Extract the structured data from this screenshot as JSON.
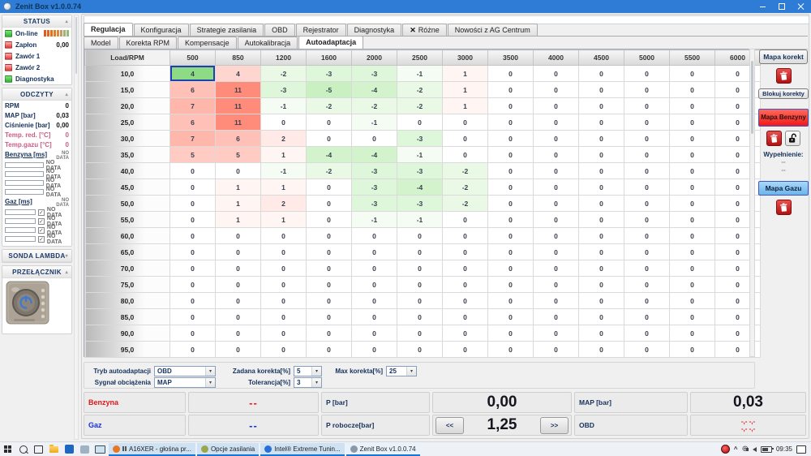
{
  "window": {
    "title": "Zenit Box v1.0.0.74"
  },
  "sidebar": {
    "status": {
      "title": "STATUS",
      "items": [
        {
          "label": "On-line",
          "led": "green",
          "type": "meter",
          "value": ""
        },
        {
          "label": "Zapłon",
          "led": "red",
          "type": "value",
          "value": "0,00"
        },
        {
          "label": "Zawór 1",
          "led": "red",
          "type": "value",
          "value": ""
        },
        {
          "label": "Zawór 2",
          "led": "red",
          "type": "value",
          "value": ""
        },
        {
          "label": "Diagnostyka",
          "led": "green",
          "type": "value",
          "value": ""
        }
      ],
      "meter_colors": [
        "#e05a20",
        "#e2641f",
        "#e4701e",
        "#e67c1d",
        "#d88a40",
        "#c39a66",
        "#a8ad7c",
        "#8fbf74"
      ]
    },
    "odczyty": {
      "title": "ODCZYTY",
      "readings": [
        {
          "label": "RPM",
          "value": "0",
          "tone": "dark"
        },
        {
          "label": "MAP [bar]",
          "value": "0,03",
          "tone": "dark"
        },
        {
          "label": "Ciśnienie [bar]",
          "value": "0,00",
          "tone": "dark"
        },
        {
          "label": "Temp. red. [°C]",
          "value": "0",
          "tone": "pink"
        },
        {
          "label": "Temp.gazu [°C]",
          "value": "0",
          "tone": "pink"
        }
      ],
      "benzyna": {
        "label": "Benzyna [ms]",
        "no_data": "NO DATA",
        "bars": [
          "NO DATA",
          "NO DATA",
          "NO DATA",
          "NO DATA"
        ]
      },
      "gaz": {
        "label": "Gaz [ms]",
        "no_data": "NO DATA",
        "bars": [
          "NO DATA",
          "NO DATA",
          "NO DATA",
          "NO DATA"
        ],
        "check": "✓"
      }
    },
    "sonda": {
      "title": "SONDA LAMBDA"
    },
    "przelacznik": {
      "title": "PRZEŁĄCZNIK"
    }
  },
  "tabs": {
    "main": [
      {
        "label": "Regulacja",
        "active": true
      },
      {
        "label": "Konfiguracja"
      },
      {
        "label": "Strategie zasilania"
      },
      {
        "label": "OBD"
      },
      {
        "label": "Rejestrator"
      },
      {
        "label": "Diagnostyka"
      },
      {
        "label": "Różne",
        "icon": "tools-icon",
        "icon_glyph": "✕"
      },
      {
        "label": "Nowości z AG Centrum"
      }
    ],
    "sub": [
      {
        "label": "Model"
      },
      {
        "label": "Korekta RPM"
      },
      {
        "label": "Kompensacje"
      },
      {
        "label": "Autokalibracja"
      },
      {
        "label": "Autoadaptacja",
        "active": true
      }
    ]
  },
  "map_table": {
    "corner": "Load/RPM",
    "columns": [
      "500",
      "850",
      "1200",
      "1600",
      "2000",
      "2500",
      "3000",
      "3500",
      "4000",
      "4500",
      "5000",
      "5500",
      "6000"
    ],
    "rows": [
      "10,0",
      "15,0",
      "20,0",
      "25,0",
      "30,0",
      "35,0",
      "40,0",
      "45,0",
      "50,0",
      "55,0",
      "60,0",
      "65,0",
      "70,0",
      "75,0",
      "80,0",
      "85,0",
      "90,0",
      "95,0"
    ],
    "values": [
      [
        4,
        4,
        -2,
        -3,
        -3,
        -1,
        1,
        0,
        0,
        0,
        0,
        0,
        0
      ],
      [
        6,
        11,
        -3,
        -5,
        -4,
        -2,
        1,
        0,
        0,
        0,
        0,
        0,
        0
      ],
      [
        7,
        11,
        -1,
        -2,
        -2,
        -2,
        1,
        0,
        0,
        0,
        0,
        0,
        0
      ],
      [
        6,
        11,
        0,
        0,
        -1,
        0,
        0,
        0,
        0,
        0,
        0,
        0,
        0
      ],
      [
        7,
        6,
        2,
        0,
        0,
        -3,
        0,
        0,
        0,
        0,
        0,
        0,
        0
      ],
      [
        5,
        5,
        1,
        -4,
        -4,
        -1,
        0,
        0,
        0,
        0,
        0,
        0,
        0
      ],
      [
        0,
        0,
        -1,
        -2,
        -3,
        -3,
        -2,
        0,
        0,
        0,
        0,
        0,
        0
      ],
      [
        0,
        1,
        1,
        0,
        -3,
        -4,
        -2,
        0,
        0,
        0,
        0,
        0,
        0
      ],
      [
        0,
        1,
        2,
        0,
        -3,
        -3,
        -2,
        0,
        0,
        0,
        0,
        0,
        0
      ],
      [
        0,
        1,
        1,
        0,
        -1,
        -1,
        0,
        0,
        0,
        0,
        0,
        0,
        0
      ],
      [
        0,
        0,
        0,
        0,
        0,
        0,
        0,
        0,
        0,
        0,
        0,
        0,
        0
      ],
      [
        0,
        0,
        0,
        0,
        0,
        0,
        0,
        0,
        0,
        0,
        0,
        0,
        0
      ],
      [
        0,
        0,
        0,
        0,
        0,
        0,
        0,
        0,
        0,
        0,
        0,
        0,
        0
      ],
      [
        0,
        0,
        0,
        0,
        0,
        0,
        0,
        0,
        0,
        0,
        0,
        0,
        0
      ],
      [
        0,
        0,
        0,
        0,
        0,
        0,
        0,
        0,
        0,
        0,
        0,
        0,
        0
      ],
      [
        0,
        0,
        0,
        0,
        0,
        0,
        0,
        0,
        0,
        0,
        0,
        0,
        0
      ],
      [
        0,
        0,
        0,
        0,
        0,
        0,
        0,
        0,
        0,
        0,
        0,
        0,
        0
      ],
      [
        0,
        0,
        0,
        0,
        0,
        0,
        0,
        0,
        0,
        0,
        0,
        0,
        0
      ]
    ],
    "selected": {
      "row": 0,
      "col": 0
    }
  },
  "controls": {
    "tryb_label": "Tryb autoadaptacji",
    "tryb_value": "OBD",
    "sygnal_label": "Sygnał obciążenia",
    "sygnal_value": "MAP",
    "zadana_label": "Zadana korekta[%]",
    "zadana_value": "5",
    "tolerancja_label": "Tolerancja[%]",
    "tolerancja_value": "3",
    "max_label": "Max korekta[%]",
    "max_value": "25"
  },
  "right_panel": {
    "mapa_korekt": "Mapa korekt",
    "blokuj_korekty": "Blokuj korekty",
    "mapa_benzyny": "Mapa Benzyny",
    "wypelnienie_label": "Wypełnienie:",
    "wypelnienie_values": [
      "--",
      "--"
    ],
    "mapa_gazu": "Mapa Gazu"
  },
  "status_panel": {
    "rows": [
      {
        "name": "Benzyna",
        "name_color": "#e01818",
        "dash": "--",
        "dash_color": "#e01818",
        "mid_label": "P [bar]",
        "mid_value": "0,00",
        "right_label": "MAP [bar]",
        "right_value": "0,03"
      },
      {
        "name": "Gaz",
        "name_color": "#1530e0",
        "dash": "--",
        "dash_color": "#1530e0",
        "mid_label": "P robocze[bar]",
        "mid_value": "1,25",
        "nav_prev": "<<",
        "nav_next": ">>",
        "right_label": "OBD",
        "right_value_line1": "-,- -,-",
        "right_value_line2": "-,- -,-"
      }
    ]
  },
  "taskbar": {
    "apps": [
      {
        "label": "A16XER - głośna pr...",
        "icon": "browser-audio-icon",
        "icon_color": "#e87722",
        "playing": true
      },
      {
        "label": "Opcje zasilania",
        "icon": "power-options-icon",
        "icon_color": "#9aa84a"
      },
      {
        "label": "Intel® Extreme Tunin...",
        "icon": "intel-icon",
        "icon_color": "#2a6fd4"
      },
      {
        "label": "Zenit Box v1.0.0.74",
        "icon": "zenit-icon",
        "icon_color": "#8a98a8",
        "active": true
      }
    ],
    "time": "09:35",
    "globe_glyph": "⊕",
    "chevron_glyph": "^"
  }
}
